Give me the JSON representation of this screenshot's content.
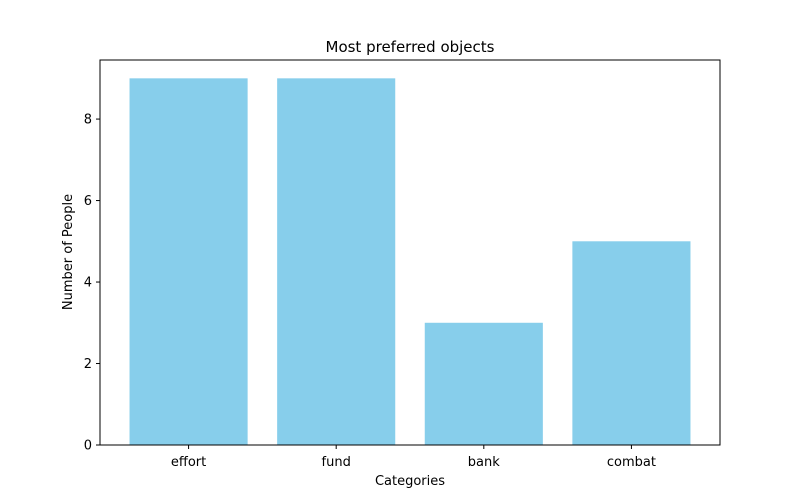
{
  "chart_data": {
    "type": "bar",
    "title": "Most preferred objects",
    "xlabel": "Categories",
    "ylabel": "Number of People",
    "categories": [
      "effort",
      "fund",
      "bank",
      "combat"
    ],
    "values": [
      9,
      9,
      3,
      5
    ],
    "ylim": [
      0,
      9.45
    ],
    "yticks": [
      0,
      2,
      4,
      6,
      8
    ],
    "bar_color": "#87CEEB",
    "grid": false,
    "legend": "none"
  }
}
